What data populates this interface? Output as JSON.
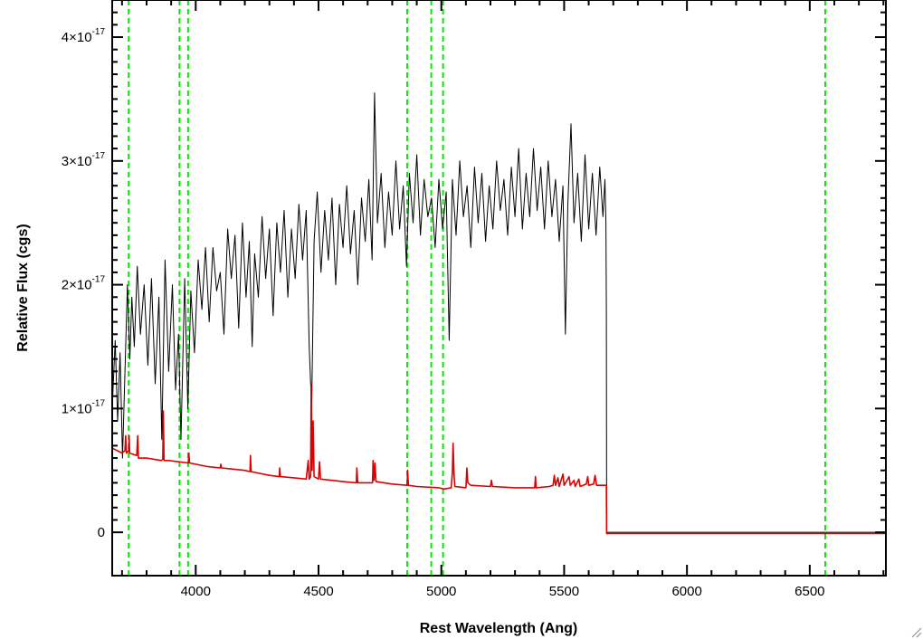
{
  "chart_data": {
    "type": "line",
    "title": "",
    "xlabel": "Rest Wavelength (Ang)",
    "ylabel": "Relative Flux (cgs)",
    "xlim": [
      3660,
      6810
    ],
    "ylim": [
      -3.5e-18,
      4.3e-17
    ],
    "x_ticks": [
      4000,
      4500,
      5000,
      5500,
      6000,
      6500
    ],
    "x_tick_labels": [
      "4000",
      "4500",
      "5000",
      "5500",
      "6000",
      "6500"
    ],
    "y_ticks": [
      0,
      1e-17,
      2e-17,
      3e-17,
      4e-17
    ],
    "y_tick_labels": [
      {
        "mant": "0",
        "exp": ""
      },
      {
        "mant": "1×10",
        "exp": "-17"
      },
      {
        "mant": "2×10",
        "exp": "-17"
      },
      {
        "mant": "3×10",
        "exp": "-17"
      },
      {
        "mant": "4×10",
        "exp": "-17"
      }
    ],
    "grid": false,
    "colors": {
      "spectrum": "#000000",
      "model": "#dd0000",
      "lines": "#00ee00"
    },
    "vertical_lines": [
      3727,
      3934,
      3969,
      4861,
      4959,
      5007,
      6563
    ],
    "series": [
      {
        "color": "#000000",
        "points": [
          [
            3660,
            1.0
          ],
          [
            3672,
            1.55
          ],
          [
            3682,
            0.9
          ],
          [
            3692,
            1.45
          ],
          [
            3702,
            0.6
          ],
          [
            3712,
            1.3
          ],
          [
            3722,
            2.0
          ],
          [
            3732,
            1.4
          ],
          [
            3740,
            1.9
          ],
          [
            3750,
            1.5
          ],
          [
            3762,
            2.15
          ],
          [
            3775,
            1.6
          ],
          [
            3790,
            2.0
          ],
          [
            3805,
            1.35
          ],
          [
            3820,
            2.05
          ],
          [
            3835,
            1.2
          ],
          [
            3850,
            1.9
          ],
          [
            3862,
            0.75
          ],
          [
            3875,
            2.2
          ],
          [
            3890,
            1.3
          ],
          [
            3905,
            2.0
          ],
          [
            3918,
            1.15
          ],
          [
            3930,
            1.6
          ],
          [
            3940,
            0.75
          ],
          [
            3955,
            2.05
          ],
          [
            3968,
            1.0
          ],
          [
            3980,
            1.95
          ],
          [
            3995,
            1.45
          ],
          [
            4010,
            2.2
          ],
          [
            4025,
            1.8
          ],
          [
            4040,
            2.3
          ],
          [
            4055,
            1.7
          ],
          [
            4070,
            2.3
          ],
          [
            4085,
            1.95
          ],
          [
            4100,
            2.1
          ],
          [
            4115,
            1.6
          ],
          [
            4130,
            2.45
          ],
          [
            4145,
            2.05
          ],
          [
            4160,
            2.4
          ],
          [
            4175,
            1.65
          ],
          [
            4190,
            2.5
          ],
          [
            4205,
            1.9
          ],
          [
            4218,
            2.35
          ],
          [
            4230,
            1.5
          ],
          [
            4240,
            2.25
          ],
          [
            4255,
            1.9
          ],
          [
            4270,
            2.55
          ],
          [
            4285,
            2.05
          ],
          [
            4300,
            2.45
          ],
          [
            4315,
            1.75
          ],
          [
            4330,
            2.5
          ],
          [
            4345,
            2.1
          ],
          [
            4360,
            2.6
          ],
          [
            4375,
            1.9
          ],
          [
            4390,
            2.45
          ],
          [
            4405,
            2.05
          ],
          [
            4420,
            2.65
          ],
          [
            4435,
            2.2
          ],
          [
            4450,
            2.6
          ],
          [
            4462,
            1.5
          ],
          [
            4472,
            1.0
          ],
          [
            4482,
            2.35
          ],
          [
            4495,
            2.75
          ],
          [
            4510,
            2.1
          ],
          [
            4525,
            2.6
          ],
          [
            4540,
            2.2
          ],
          [
            4555,
            2.7
          ],
          [
            4570,
            2.0
          ],
          [
            4585,
            2.65
          ],
          [
            4600,
            2.3
          ],
          [
            4615,
            2.8
          ],
          [
            4630,
            2.25
          ],
          [
            4645,
            2.6
          ],
          [
            4660,
            2.0
          ],
          [
            4675,
            2.7
          ],
          [
            4690,
            2.35
          ],
          [
            4705,
            2.85
          ],
          [
            4718,
            2.2
          ],
          [
            4728,
            3.55
          ],
          [
            4740,
            2.5
          ],
          [
            4755,
            2.9
          ],
          [
            4770,
            2.3
          ],
          [
            4785,
            2.75
          ],
          [
            4800,
            2.4
          ],
          [
            4815,
            3.0
          ],
          [
            4830,
            2.45
          ],
          [
            4845,
            2.8
          ],
          [
            4858,
            2.15
          ],
          [
            4870,
            2.9
          ],
          [
            4885,
            2.5
          ],
          [
            4900,
            3.05
          ],
          [
            4915,
            2.4
          ],
          [
            4930,
            2.85
          ],
          [
            4945,
            2.55
          ],
          [
            4960,
            2.7
          ],
          [
            4975,
            2.3
          ],
          [
            4990,
            2.85
          ],
          [
            5005,
            2.45
          ],
          [
            5020,
            2.75
          ],
          [
            5032,
            1.55
          ],
          [
            5045,
            2.85
          ],
          [
            5060,
            2.4
          ],
          [
            5075,
            3.0
          ],
          [
            5090,
            2.55
          ],
          [
            5105,
            2.8
          ],
          [
            5120,
            2.3
          ],
          [
            5135,
            2.95
          ],
          [
            5150,
            2.5
          ],
          [
            5165,
            2.9
          ],
          [
            5180,
            2.35
          ],
          [
            5195,
            2.8
          ],
          [
            5210,
            2.45
          ],
          [
            5225,
            3.0
          ],
          [
            5240,
            2.6
          ],
          [
            5255,
            2.85
          ],
          [
            5270,
            2.4
          ],
          [
            5285,
            2.95
          ],
          [
            5300,
            2.55
          ],
          [
            5315,
            3.1
          ],
          [
            5330,
            2.45
          ],
          [
            5345,
            2.9
          ],
          [
            5360,
            2.55
          ],
          [
            5375,
            3.1
          ],
          [
            5390,
            2.6
          ],
          [
            5405,
            2.95
          ],
          [
            5420,
            2.45
          ],
          [
            5435,
            3.0
          ],
          [
            5450,
            2.55
          ],
          [
            5465,
            2.85
          ],
          [
            5480,
            2.35
          ],
          [
            5495,
            2.8
          ],
          [
            5505,
            1.6
          ],
          [
            5515,
            2.65
          ],
          [
            5528,
            3.3
          ],
          [
            5540,
            2.5
          ],
          [
            5555,
            2.9
          ],
          [
            5570,
            2.35
          ],
          [
            5585,
            3.05
          ],
          [
            5600,
            2.45
          ],
          [
            5615,
            2.9
          ],
          [
            5630,
            2.4
          ],
          [
            5645,
            2.95
          ],
          [
            5658,
            2.55
          ],
          [
            5666,
            2.85
          ],
          [
            5670,
            2.5
          ],
          [
            5672,
            1.8
          ],
          [
            5673,
            0.0
          ],
          [
            6810,
            0.0
          ]
        ]
      },
      {
        "color": "#dd0000",
        "points": [
          [
            3660,
            0.68
          ],
          [
            3700,
            0.64
          ],
          [
            3712,
            0.66
          ],
          [
            3715,
            0.78
          ],
          [
            3718,
            0.64
          ],
          [
            3727,
            0.66
          ],
          [
            3729,
            0.78
          ],
          [
            3731,
            0.64
          ],
          [
            3760,
            0.62
          ],
          [
            3764,
            0.78
          ],
          [
            3767,
            0.6
          ],
          [
            3800,
            0.6
          ],
          [
            3860,
            0.58
          ],
          [
            3866,
            0.59
          ],
          [
            3868,
            0.98
          ],
          [
            3871,
            0.58
          ],
          [
            3890,
            0.58
          ],
          [
            3930,
            0.57
          ],
          [
            3970,
            0.56
          ],
          [
            3972,
            0.64
          ],
          [
            3975,
            0.56
          ],
          [
            4050,
            0.53
          ],
          [
            4100,
            0.52
          ],
          [
            4102,
            0.55
          ],
          [
            4105,
            0.52
          ],
          [
            4200,
            0.5
          ],
          [
            4221,
            0.49
          ],
          [
            4223,
            0.62
          ],
          [
            4226,
            0.49
          ],
          [
            4300,
            0.46
          ],
          [
            4340,
            0.45
          ],
          [
            4342,
            0.52
          ],
          [
            4345,
            0.45
          ],
          [
            4400,
            0.44
          ],
          [
            4450,
            0.43
          ],
          [
            4458,
            0.58
          ],
          [
            4462,
            0.43
          ],
          [
            4468,
            0.45
          ],
          [
            4470,
            1.2
          ],
          [
            4474,
            0.5
          ],
          [
            4478,
            0.9
          ],
          [
            4482,
            0.45
          ],
          [
            4500,
            0.43
          ],
          [
            4504,
            0.57
          ],
          [
            4508,
            0.43
          ],
          [
            4600,
            0.41
          ],
          [
            4654,
            0.4
          ],
          [
            4656,
            0.52
          ],
          [
            4660,
            0.4
          ],
          [
            4720,
            0.4
          ],
          [
            4722,
            0.58
          ],
          [
            4726,
            0.42
          ],
          [
            4730,
            0.56
          ],
          [
            4734,
            0.41
          ],
          [
            4800,
            0.39
          ],
          [
            4861,
            0.38
          ],
          [
            4863,
            0.5
          ],
          [
            4866,
            0.38
          ],
          [
            4900,
            0.37
          ],
          [
            4990,
            0.36
          ],
          [
            5010,
            0.35
          ],
          [
            5040,
            0.36
          ],
          [
            5045,
            0.48
          ],
          [
            5048,
            0.72
          ],
          [
            5052,
            0.46
          ],
          [
            5055,
            0.37
          ],
          [
            5100,
            0.36
          ],
          [
            5104,
            0.52
          ],
          [
            5108,
            0.4
          ],
          [
            5120,
            0.38
          ],
          [
            5200,
            0.37
          ],
          [
            5204,
            0.42
          ],
          [
            5208,
            0.37
          ],
          [
            5300,
            0.36
          ],
          [
            5380,
            0.36
          ],
          [
            5383,
            0.45
          ],
          [
            5386,
            0.36
          ],
          [
            5440,
            0.37
          ],
          [
            5455,
            0.38
          ],
          [
            5460,
            0.46
          ],
          [
            5465,
            0.38
          ],
          [
            5475,
            0.44
          ],
          [
            5480,
            0.37
          ],
          [
            5495,
            0.47
          ],
          [
            5500,
            0.38
          ],
          [
            5520,
            0.45
          ],
          [
            5525,
            0.38
          ],
          [
            5540,
            0.42
          ],
          [
            5545,
            0.37
          ],
          [
            5560,
            0.43
          ],
          [
            5565,
            0.37
          ],
          [
            5590,
            0.39
          ],
          [
            5596,
            0.45
          ],
          [
            5600,
            0.38
          ],
          [
            5620,
            0.39
          ],
          [
            5626,
            0.46
          ],
          [
            5632,
            0.38
          ],
          [
            5650,
            0.38
          ],
          [
            5672,
            0.38
          ],
          [
            5673,
            -0.01
          ],
          [
            6810,
            -0.01
          ]
        ]
      }
    ]
  }
}
